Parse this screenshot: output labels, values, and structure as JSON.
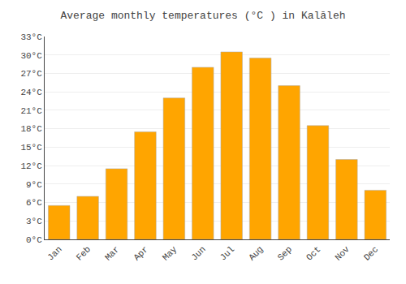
{
  "chart_data": {
    "type": "bar",
    "title": "Average monthly temperatures (°C ) in Kalāleh",
    "categories": [
      "Jan",
      "Feb",
      "Mar",
      "Apr",
      "May",
      "Jun",
      "Jul",
      "Aug",
      "Sep",
      "Oct",
      "Nov",
      "Dec"
    ],
    "values": [
      5.5,
      7.0,
      11.5,
      17.5,
      23.0,
      28.0,
      30.5,
      29.5,
      25.0,
      18.5,
      13.0,
      8.0
    ],
    "color": "#FFA500",
    "ylim": [
      0,
      33
    ],
    "yticks": [
      {
        "value": 0,
        "label": "0°C"
      },
      {
        "value": 3,
        "label": "3°C"
      },
      {
        "value": 6,
        "label": "6°C"
      },
      {
        "value": 9,
        "label": "9°C"
      },
      {
        "value": 12,
        "label": "12°C"
      },
      {
        "value": 15,
        "label": "15°C"
      },
      {
        "value": 18,
        "label": "18°C"
      },
      {
        "value": 21,
        "label": "21°C"
      },
      {
        "value": 24,
        "label": "24°C"
      },
      {
        "value": 27,
        "label": "27°C"
      },
      {
        "value": 30,
        "label": "30°C"
      },
      {
        "value": 33,
        "label": "33°C"
      }
    ],
    "grid": true
  }
}
